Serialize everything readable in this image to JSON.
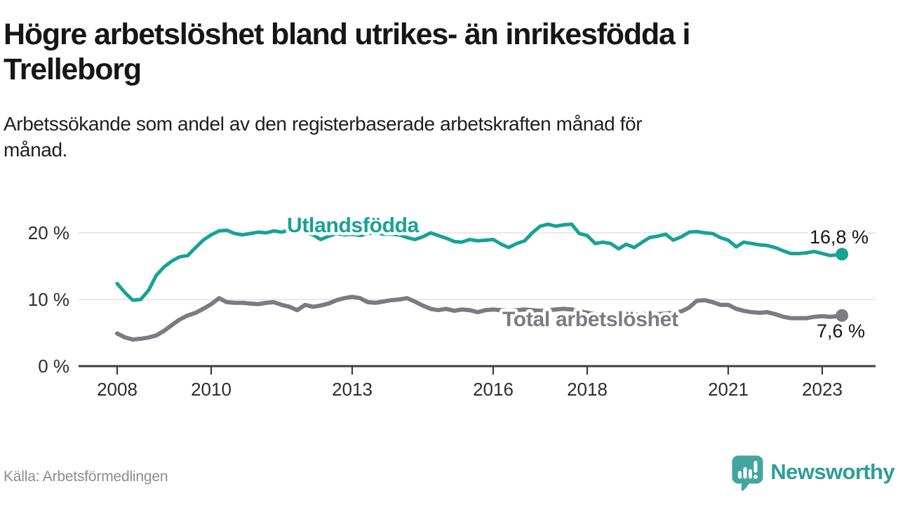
{
  "header": {
    "title_line1": "Högre arbetslöshet bland utrikes- än inrikesfödda i",
    "title_line2": "Trelleborg",
    "subtitle_line1": "Arbetssökande som andel av den registerbaserade arbetskraften månad för",
    "subtitle_line2": "månad."
  },
  "footer": {
    "source": "Källa: Arbetsförmedlingen",
    "brand_name": "Newsworthy"
  },
  "colors": {
    "teal_line": "#17a296",
    "gray_line": "#7b7b81",
    "axis": "#3d3d3d",
    "grid": "#e2e2e2",
    "logo_teal": "#43a5a0",
    "wordmark_teal": "#2d9e98",
    "end_label_text": "#141414"
  },
  "chart_data": {
    "type": "line",
    "title": "Högre arbetslöshet bland utrikes- än inrikesfödda i Trelleborg",
    "subtitle": "Arbetssökande som andel av den registerbaserade arbetskraften månad för månad.",
    "y_unit": "%",
    "grid": "horizontal-only",
    "legend_position": "inline-labels",
    "y_range": [
      0,
      22
    ],
    "x_range": [
      2007.2,
      2024.1
    ],
    "y_ticks": [
      {
        "value": 0,
        "label": "0 %"
      },
      {
        "value": 10,
        "label": "10 %"
      },
      {
        "value": 20,
        "label": "20 %"
      }
    ],
    "x_ticks": [
      {
        "year": 2008,
        "label": "2008"
      },
      {
        "year": 2010,
        "label": "2010"
      },
      {
        "year": 2013,
        "label": "2013"
      },
      {
        "year": 2016,
        "label": "2016"
      },
      {
        "year": 2018,
        "label": "2018"
      },
      {
        "year": 2021,
        "label": "2021"
      },
      {
        "year": 2023,
        "label": "2023"
      }
    ],
    "x": [
      2008.0,
      2008.17,
      2008.33,
      2008.5,
      2008.67,
      2008.83,
      2009.0,
      2009.17,
      2009.33,
      2009.5,
      2009.67,
      2009.83,
      2010.0,
      2010.17,
      2010.33,
      2010.5,
      2010.67,
      2010.83,
      2011.0,
      2011.17,
      2011.33,
      2011.5,
      2011.67,
      2011.83,
      2012.0,
      2012.17,
      2012.33,
      2012.5,
      2012.67,
      2012.83,
      2013.0,
      2013.17,
      2013.33,
      2013.5,
      2013.67,
      2013.83,
      2014.0,
      2014.17,
      2014.33,
      2014.5,
      2014.67,
      2014.83,
      2015.0,
      2015.17,
      2015.33,
      2015.5,
      2015.67,
      2015.83,
      2016.0,
      2016.17,
      2016.33,
      2016.5,
      2016.67,
      2016.83,
      2017.0,
      2017.17,
      2017.33,
      2017.5,
      2017.67,
      2017.83,
      2018.0,
      2018.17,
      2018.33,
      2018.5,
      2018.67,
      2018.83,
      2019.0,
      2019.17,
      2019.33,
      2019.5,
      2019.67,
      2019.83,
      2020.0,
      2020.17,
      2020.33,
      2020.5,
      2020.67,
      2020.83,
      2021.0,
      2021.17,
      2021.33,
      2021.5,
      2021.67,
      2021.83,
      2022.0,
      2022.17,
      2022.33,
      2022.5,
      2022.67,
      2022.83,
      2023.0,
      2023.17,
      2023.33,
      2023.42
    ],
    "series": [
      {
        "id": "utlandsfodda",
        "name": "Utlandsfödda",
        "color": "#17a296",
        "line_width": 5,
        "end_label": "16,8 %",
        "end_value": 16.8,
        "values": [
          12.4,
          11.0,
          9.9,
          10.0,
          11.4,
          13.6,
          14.9,
          15.8,
          16.4,
          16.6,
          17.8,
          18.9,
          19.7,
          20.3,
          20.4,
          19.9,
          19.7,
          19.9,
          20.1,
          20.0,
          20.3,
          20.1,
          20.5,
          20.3,
          20.0,
          19.7,
          19.0,
          19.5,
          19.9,
          19.7,
          19.8,
          19.6,
          19.9,
          20.0,
          19.8,
          19.8,
          19.7,
          19.3,
          19.0,
          19.4,
          20.0,
          19.6,
          19.2,
          18.7,
          18.6,
          19.0,
          18.8,
          18.9,
          19.0,
          18.3,
          17.8,
          18.4,
          18.8,
          20.0,
          21.0,
          21.3,
          21.0,
          21.2,
          21.3,
          19.9,
          19.6,
          18.4,
          18.6,
          18.4,
          17.6,
          18.3,
          17.8,
          18.6,
          19.3,
          19.5,
          19.8,
          18.9,
          19.4,
          20.1,
          20.2,
          20.0,
          19.9,
          19.3,
          18.9,
          17.9,
          18.6,
          18.4,
          18.2,
          18.1,
          17.8,
          17.3,
          16.9,
          16.9,
          17.0,
          17.2,
          16.9,
          16.6,
          16.7,
          16.8
        ]
      },
      {
        "id": "total",
        "name": "Total arbetslöshet",
        "color": "#7b7b81",
        "line_width": 6,
        "end_label": "7,6 %",
        "end_value": 7.6,
        "values": [
          4.9,
          4.3,
          4.0,
          4.1,
          4.3,
          4.6,
          5.3,
          6.2,
          7.0,
          7.6,
          8.0,
          8.6,
          9.3,
          10.2,
          9.6,
          9.5,
          9.5,
          9.4,
          9.3,
          9.5,
          9.6,
          9.2,
          8.9,
          8.4,
          9.2,
          8.9,
          9.1,
          9.4,
          9.9,
          10.2,
          10.4,
          10.2,
          9.6,
          9.5,
          9.7,
          9.9,
          10.0,
          10.2,
          9.7,
          9.1,
          8.6,
          8.4,
          8.6,
          8.3,
          8.5,
          8.4,
          8.1,
          8.4,
          8.5,
          8.4,
          8.3,
          8.4,
          8.5,
          8.4,
          8.3,
          8.4,
          8.5,
          8.6,
          8.5,
          8.3,
          8.0,
          7.8,
          7.6,
          7.5,
          7.6,
          7.7,
          7.7,
          7.8,
          7.9,
          7.8,
          7.9,
          8.0,
          8.2,
          8.8,
          9.8,
          9.9,
          9.6,
          9.2,
          9.2,
          8.6,
          8.3,
          8.1,
          8.0,
          8.1,
          7.8,
          7.4,
          7.2,
          7.2,
          7.2,
          7.4,
          7.5,
          7.4,
          7.5,
          7.6
        ]
      }
    ]
  }
}
